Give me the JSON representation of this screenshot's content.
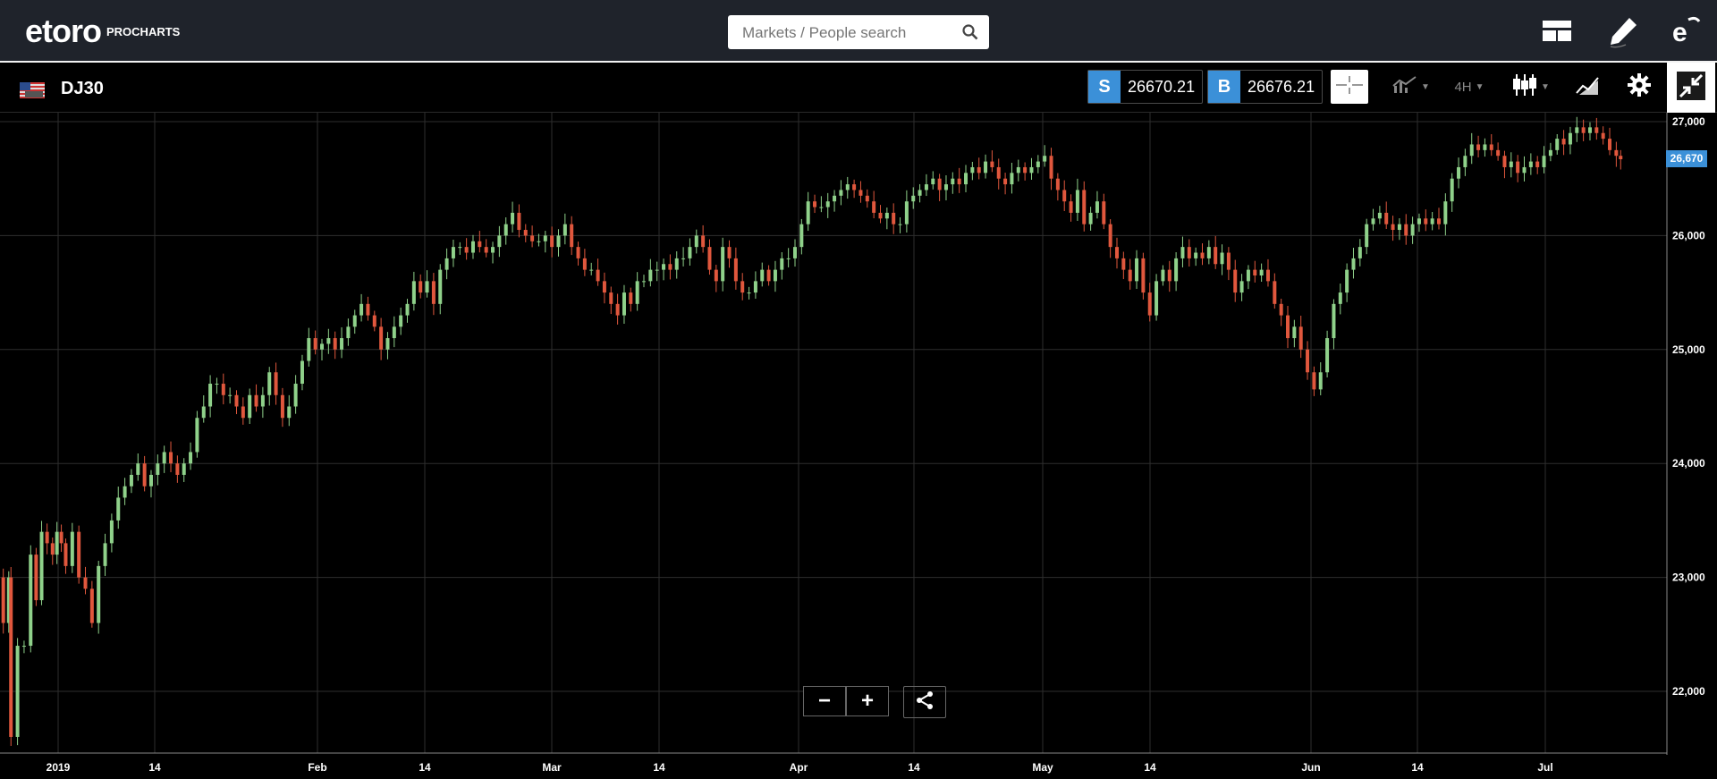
{
  "app": {
    "brand": "etoro",
    "brand_sub": "PROCHARTS",
    "search_placeholder": "Markets / People search"
  },
  "instrument": {
    "symbol": "DJ30",
    "sell_tag": "S",
    "sell_price": "26670.21",
    "buy_tag": "B",
    "buy_price": "26676.21",
    "timeframe": "4H"
  },
  "icons": {
    "search": "search-icon",
    "layout": "layout-icon",
    "pencil": "pencil-icon",
    "profile": "etoro-profile-icon",
    "crosshair": "crosshair-icon",
    "indicators": "indicators-icon",
    "candles": "candlestick-icon",
    "drawing": "drawing-tools-icon",
    "settings": "gear-icon",
    "collapse": "collapse-icon",
    "share": "share-icon"
  },
  "colors": {
    "up": "#8fd18a",
    "down": "#e0573d",
    "accent": "#3b90d8"
  },
  "chart_controls": {
    "zoom_out": "−",
    "zoom_in": "+"
  },
  "chart_data": {
    "type": "candlestick",
    "y_ticks": [
      "27,000",
      "26,000",
      "25,000",
      "24,000",
      "23,000",
      "22,000"
    ],
    "x_ticks": [
      "2019",
      "14",
      "Feb",
      "14",
      "Mar",
      "14",
      "Apr",
      "14",
      "May",
      "14",
      "Jun",
      "14",
      "Jul"
    ],
    "ylim": [
      21450,
      27050
    ],
    "last_price_label": "26,670",
    "last_price": 26670,
    "series_path": [
      [
        0,
        23000
      ],
      [
        3,
        22600
      ],
      [
        8,
        23000
      ],
      [
        10,
        21600
      ],
      [
        16,
        22400
      ],
      [
        22,
        22400
      ],
      [
        28,
        23200
      ],
      [
        33,
        22800
      ],
      [
        38,
        23400
      ],
      [
        43,
        23300
      ],
      [
        48,
        23200
      ],
      [
        52,
        23400
      ],
      [
        56,
        23300
      ],
      [
        60,
        23100
      ],
      [
        66,
        23400
      ],
      [
        72,
        23000
      ],
      [
        78,
        22900
      ],
      [
        84,
        22600
      ],
      [
        90,
        23100
      ],
      [
        96,
        23300
      ],
      [
        102,
        23500
      ],
      [
        108,
        23700
      ],
      [
        114,
        23800
      ],
      [
        120,
        23900
      ],
      [
        126,
        24000
      ],
      [
        132,
        23800
      ],
      [
        138,
        23900
      ],
      [
        144,
        24000
      ],
      [
        150,
        24100
      ],
      [
        156,
        24000
      ],
      [
        162,
        23900
      ],
      [
        168,
        24000
      ],
      [
        174,
        24100
      ],
      [
        180,
        24400
      ],
      [
        186,
        24500
      ],
      [
        192,
        24700
      ],
      [
        198,
        24700
      ],
      [
        204,
        24600
      ],
      [
        210,
        24600
      ],
      [
        216,
        24500
      ],
      [
        222,
        24400
      ],
      [
        228,
        24600
      ],
      [
        234,
        24500
      ],
      [
        240,
        24600
      ],
      [
        246,
        24800
      ],
      [
        252,
        24600
      ],
      [
        258,
        24400
      ],
      [
        264,
        24500
      ],
      [
        270,
        24700
      ],
      [
        276,
        24900
      ],
      [
        282,
        25100
      ],
      [
        288,
        25000
      ],
      [
        294,
        25050
      ],
      [
        300,
        25100
      ],
      [
        306,
        25000
      ],
      [
        312,
        25100
      ],
      [
        318,
        25200
      ],
      [
        324,
        25300
      ],
      [
        330,
        25400
      ],
      [
        336,
        25300
      ],
      [
        342,
        25200
      ],
      [
        348,
        25000
      ],
      [
        354,
        25100
      ],
      [
        360,
        25200
      ],
      [
        366,
        25300
      ],
      [
        372,
        25400
      ],
      [
        378,
        25600
      ],
      [
        384,
        25500
      ],
      [
        390,
        25600
      ],
      [
        396,
        25400
      ],
      [
        402,
        25700
      ],
      [
        408,
        25800
      ],
      [
        414,
        25900
      ],
      [
        420,
        25900
      ],
      [
        426,
        25850
      ],
      [
        432,
        25950
      ],
      [
        438,
        25900
      ],
      [
        444,
        25850
      ],
      [
        450,
        25900
      ],
      [
        456,
        26000
      ],
      [
        462,
        26100
      ],
      [
        468,
        26200
      ],
      [
        474,
        26050
      ],
      [
        480,
        26000
      ],
      [
        486,
        25950
      ],
      [
        492,
        25950
      ],
      [
        498,
        26000
      ],
      [
        504,
        25900
      ],
      [
        510,
        26000
      ],
      [
        516,
        26100
      ],
      [
        522,
        25900
      ],
      [
        528,
        25800
      ],
      [
        534,
        25700
      ],
      [
        540,
        25700
      ],
      [
        546,
        25600
      ],
      [
        552,
        25500
      ],
      [
        558,
        25400
      ],
      [
        564,
        25300
      ],
      [
        570,
        25500
      ],
      [
        576,
        25400
      ],
      [
        582,
        25600
      ],
      [
        588,
        25600
      ],
      [
        594,
        25700
      ],
      [
        600,
        25700
      ],
      [
        606,
        25750
      ],
      [
        612,
        25700
      ],
      [
        618,
        25800
      ],
      [
        624,
        25800
      ],
      [
        630,
        25900
      ],
      [
        636,
        26000
      ],
      [
        642,
        25900
      ],
      [
        648,
        25700
      ],
      [
        654,
        25600
      ],
      [
        660,
        25900
      ],
      [
        666,
        25800
      ],
      [
        672,
        25600
      ],
      [
        678,
        25500
      ],
      [
        684,
        25500
      ],
      [
        690,
        25600
      ],
      [
        696,
        25700
      ],
      [
        702,
        25600
      ],
      [
        708,
        25700
      ],
      [
        714,
        25800
      ],
      [
        720,
        25800
      ],
      [
        726,
        25900
      ],
      [
        732,
        26100
      ],
      [
        738,
        26300
      ],
      [
        744,
        26250
      ],
      [
        750,
        26250
      ],
      [
        756,
        26300
      ],
      [
        762,
        26350
      ],
      [
        768,
        26400
      ],
      [
        774,
        26450
      ],
      [
        780,
        26400
      ],
      [
        786,
        26350
      ],
      [
        792,
        26300
      ],
      [
        798,
        26200
      ],
      [
        804,
        26150
      ],
      [
        810,
        26200
      ],
      [
        816,
        26100
      ],
      [
        822,
        26100
      ],
      [
        828,
        26300
      ],
      [
        834,
        26350
      ],
      [
        840,
        26400
      ],
      [
        846,
        26450
      ],
      [
        852,
        26500
      ],
      [
        858,
        26400
      ],
      [
        864,
        26450
      ],
      [
        870,
        26500
      ],
      [
        876,
        26450
      ],
      [
        882,
        26550
      ],
      [
        888,
        26600
      ],
      [
        894,
        26550
      ],
      [
        900,
        26650
      ],
      [
        906,
        26600
      ],
      [
        912,
        26500
      ],
      [
        918,
        26450
      ],
      [
        924,
        26550
      ],
      [
        930,
        26600
      ],
      [
        936,
        26550
      ],
      [
        942,
        26600
      ],
      [
        948,
        26650
      ],
      [
        954,
        26700
      ],
      [
        960,
        26500
      ],
      [
        966,
        26400
      ],
      [
        972,
        26300
      ],
      [
        978,
        26200
      ],
      [
        984,
        26400
      ],
      [
        990,
        26100
      ],
      [
        996,
        26200
      ],
      [
        1002,
        26300
      ],
      [
        1008,
        26100
      ],
      [
        1014,
        25900
      ],
      [
        1020,
        25800
      ],
      [
        1026,
        25700
      ],
      [
        1032,
        25600
      ],
      [
        1038,
        25800
      ],
      [
        1044,
        25500
      ],
      [
        1050,
        25300
      ],
      [
        1056,
        25600
      ],
      [
        1062,
        25700
      ],
      [
        1068,
        25600
      ],
      [
        1074,
        25800
      ],
      [
        1080,
        25900
      ],
      [
        1086,
        25800
      ],
      [
        1092,
        25850
      ],
      [
        1098,
        25800
      ],
      [
        1104,
        25900
      ],
      [
        1110,
        25750
      ],
      [
        1116,
        25850
      ],
      [
        1122,
        25700
      ],
      [
        1128,
        25500
      ],
      [
        1134,
        25600
      ],
      [
        1140,
        25700
      ],
      [
        1146,
        25650
      ],
      [
        1152,
        25700
      ],
      [
        1158,
        25600
      ],
      [
        1164,
        25400
      ],
      [
        1170,
        25300
      ],
      [
        1176,
        25100
      ],
      [
        1182,
        25200
      ],
      [
        1188,
        25000
      ],
      [
        1194,
        24800
      ],
      [
        1200,
        24650
      ],
      [
        1206,
        24800
      ],
      [
        1212,
        25100
      ],
      [
        1218,
        25400
      ],
      [
        1224,
        25500
      ],
      [
        1230,
        25700
      ],
      [
        1236,
        25800
      ],
      [
        1242,
        25900
      ],
      [
        1248,
        26100
      ],
      [
        1254,
        26150
      ],
      [
        1260,
        26200
      ],
      [
        1266,
        26100
      ],
      [
        1272,
        26050
      ],
      [
        1278,
        26100
      ],
      [
        1284,
        26000
      ],
      [
        1290,
        26100
      ],
      [
        1296,
        26150
      ],
      [
        1302,
        26100
      ],
      [
        1308,
        26150
      ],
      [
        1314,
        26100
      ],
      [
        1320,
        26300
      ],
      [
        1326,
        26500
      ],
      [
        1332,
        26600
      ],
      [
        1338,
        26700
      ],
      [
        1344,
        26800
      ],
      [
        1350,
        26750
      ],
      [
        1356,
        26800
      ],
      [
        1362,
        26750
      ],
      [
        1368,
        26700
      ],
      [
        1374,
        26600
      ],
      [
        1380,
        26650
      ],
      [
        1386,
        26550
      ],
      [
        1392,
        26600
      ],
      [
        1398,
        26650
      ],
      [
        1404,
        26600
      ],
      [
        1410,
        26700
      ],
      [
        1416,
        26750
      ],
      [
        1422,
        26850
      ],
      [
        1428,
        26800
      ],
      [
        1434,
        26900
      ],
      [
        1440,
        26950
      ],
      [
        1446,
        26900
      ],
      [
        1452,
        26950
      ],
      [
        1458,
        26900
      ],
      [
        1464,
        26850
      ],
      [
        1470,
        26750
      ],
      [
        1476,
        26700
      ],
      [
        1480,
        26670
      ]
    ]
  }
}
